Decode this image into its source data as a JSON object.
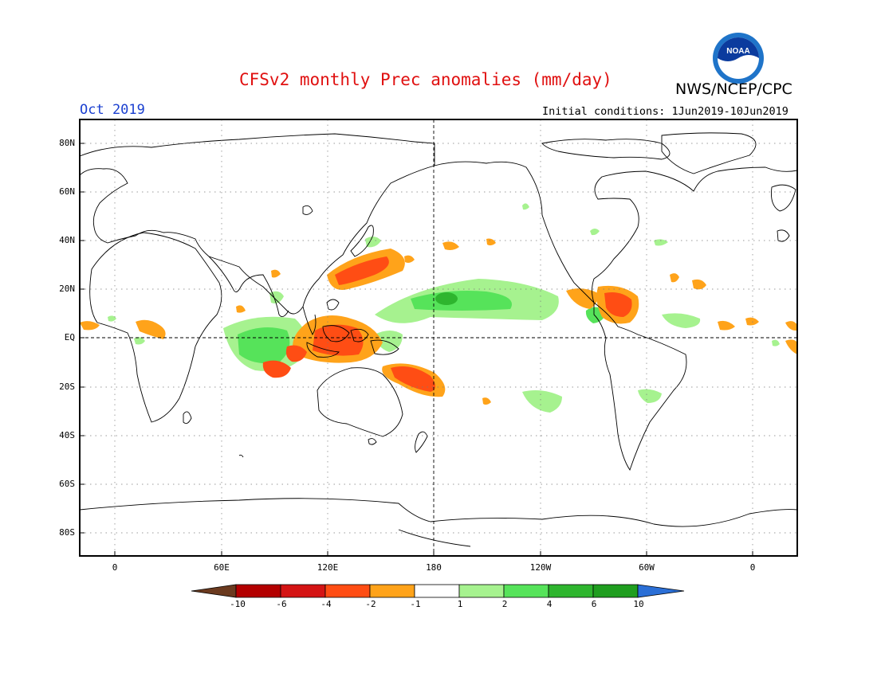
{
  "header": {
    "title": "CFSv2 monthly Prec anomalies (mm/day)",
    "month": "Oct 2019",
    "initial_conditions": "Initial conditions: 1Jun2019-10Jun2019",
    "organization": "NWS/NCEP/CPC",
    "logo_text": "NOAA",
    "logo_icon": "noaa-logo-icon"
  },
  "axes": {
    "lat_labels": [
      "80N",
      "60N",
      "40N",
      "20N",
      "EQ",
      "20S",
      "40S",
      "60S",
      "80S"
    ],
    "lon_labels": [
      "0",
      "60E",
      "120E",
      "180",
      "120W",
      "60W",
      "0"
    ]
  },
  "colorbar": {
    "levels": [
      "-10",
      "-6",
      "-4",
      "-2",
      "-1",
      "1",
      "2",
      "4",
      "6",
      "10"
    ],
    "colors": [
      "#6b3a1f",
      "#b30000",
      "#d41414",
      "#ff4d14",
      "#ffa31a",
      "#ffffff",
      "#a6f28f",
      "#56e35a",
      "#2eb52e",
      "#1f9e1f",
      "#2b6fd6"
    ],
    "anomaly_wet_color": "#56e35a",
    "anomaly_dry_color": "#ff4d14"
  },
  "map": {
    "grid": "dotted",
    "reference_lines": [
      "equator",
      "dateline"
    ],
    "projection": "cylindrical equidistant"
  }
}
